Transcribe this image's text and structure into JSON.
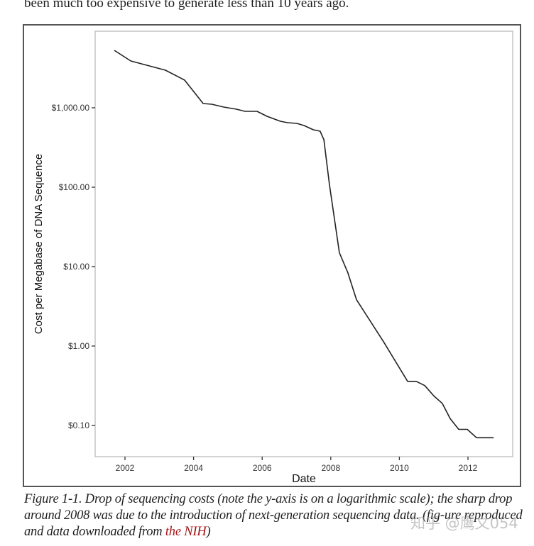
{
  "intro_text": "been much too expensive to generate less than 10 years ago.",
  "caption": {
    "prefix": "Figure 1-1. Drop of sequencing costs (note the y-axis is on a logarithmic scale); the sharp drop around 2008 was due to the introduction of next-generation sequencing data. (fig-ure reproduced and data downloaded from ",
    "link_text": "the NIH",
    "suffix": ")",
    "link_color": "#a31515"
  },
  "watermark": "知乎 @鹰文054",
  "chart_data": {
    "type": "line",
    "title": "",
    "xlabel": "Date",
    "ylabel": "Cost per Megabase of DNA Sequence",
    "yscale": "log",
    "xlim": [
      2001.2,
      2013.2
    ],
    "ylim": [
      0.055,
      15000
    ],
    "grid": false,
    "legend": "none",
    "x_ticks": [
      2002,
      2004,
      2006,
      2008,
      2010,
      2012
    ],
    "x_tick_labels": [
      "2002",
      "2004",
      "2006",
      "2008",
      "2010",
      "2012"
    ],
    "y_ticks": [
      1000,
      100,
      10,
      1,
      0.1
    ],
    "y_tick_labels": [
      "$1,000.00",
      "$100.00",
      "$10.00",
      "$1.00",
      "$0.10"
    ],
    "series": [
      {
        "name": "Cost per Megabase",
        "color": "#222222",
        "x": [
          2001.69,
          2002.17,
          2003.18,
          2003.74,
          2004.28,
          2004.53,
          2004.88,
          2005.25,
          2005.5,
          2005.85,
          2006.14,
          2006.53,
          2006.74,
          2007.01,
          2007.22,
          2007.49,
          2007.69,
          2007.8,
          2007.96,
          2008.25,
          2008.5,
          2008.75,
          2009.54,
          2010.24,
          2010.49,
          2010.74,
          2011.01,
          2011.25,
          2011.48,
          2011.73,
          2011.98,
          2012.25,
          2012.75
        ],
        "values": [
          5292,
          3882,
          2973,
          2228,
          1131,
          1108,
          1021,
          960,
          902,
          902,
          781,
          677,
          649,
          636,
          598,
          529,
          507,
          397,
          108.6,
          15.0,
          8.36,
          3.84,
          1.13,
          0.359,
          0.359,
          0.318,
          0.234,
          0.19,
          0.122,
          0.0893,
          0.0893,
          0.07,
          0.07
        ]
      }
    ]
  }
}
